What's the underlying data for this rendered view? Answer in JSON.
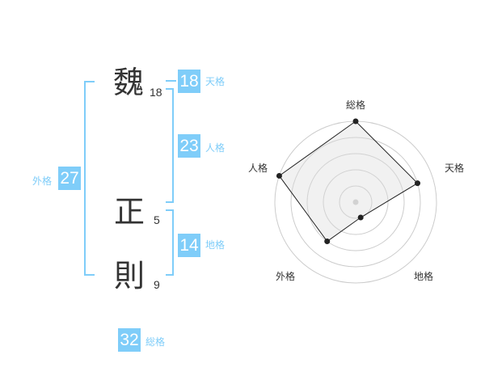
{
  "name": {
    "chars": [
      {
        "char": "魏",
        "strokes": "18"
      },
      {
        "char": "正",
        "strokes": "5"
      },
      {
        "char": "則",
        "strokes": "9"
      }
    ]
  },
  "fortunes": {
    "tenkaku": {
      "label": "天格",
      "value": "18"
    },
    "jinkaku": {
      "label": "人格",
      "value": "23"
    },
    "chikaku": {
      "label": "地格",
      "value": "14"
    },
    "gaikaku": {
      "label": "外格",
      "value": "27"
    },
    "soukaku": {
      "label": "総格",
      "value": "32"
    }
  },
  "colors": {
    "accent": "#7fcdf9"
  },
  "chart_data": {
    "type": "radar",
    "axes": [
      "総格",
      "天格",
      "地格",
      "外格",
      "人格"
    ],
    "values": [
      5,
      4,
      1,
      3,
      5
    ],
    "range": [
      0,
      5
    ],
    "rings": 5
  }
}
